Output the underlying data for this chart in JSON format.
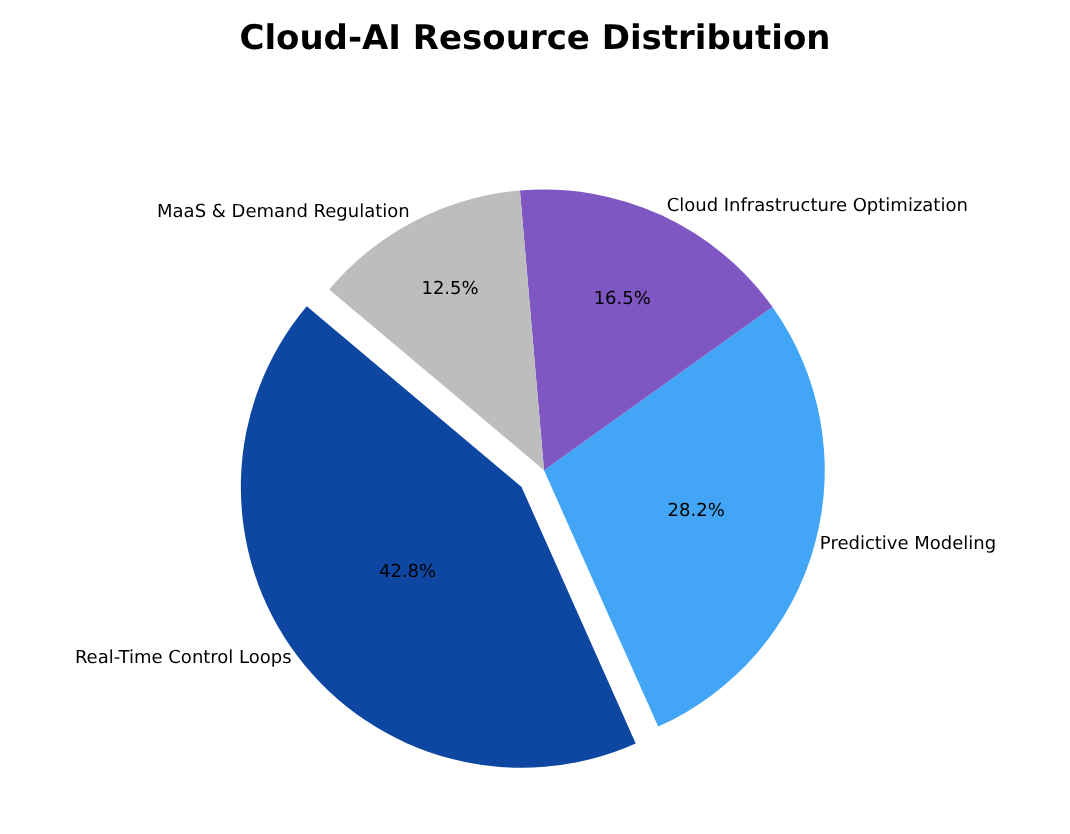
{
  "chart_data": {
    "type": "pie",
    "title": "Cloud-AI Resource Distribution",
    "categories": [
      "Real-Time Control Loops",
      "Predictive Modeling",
      "Cloud Infrastructure Optimization",
      "MaaS & Demand Regulation"
    ],
    "values": [
      42.8,
      28.2,
      16.5,
      12.5
    ],
    "colors": [
      "#0d47a1",
      "#42a5f5",
      "#7e57c2",
      "#bdbdbd"
    ],
    "value_labels": [
      "42.8%",
      "28.2%",
      "16.5%",
      "12.5%"
    ],
    "legend": false
  }
}
